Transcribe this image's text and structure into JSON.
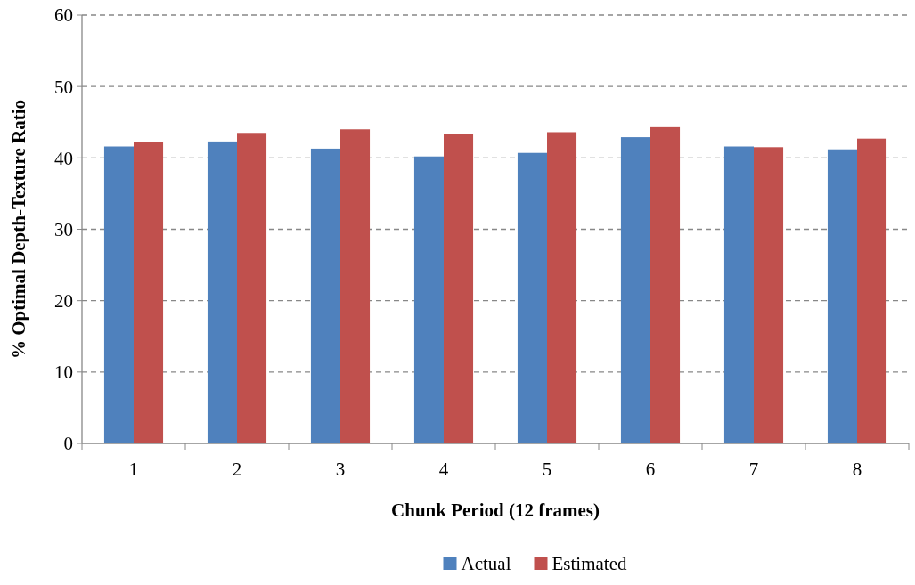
{
  "chart_data": {
    "type": "bar",
    "xlabel": "Chunk Period (12 frames)",
    "ylabel": "% Optimal Depth-Texture Ratio",
    "categories": [
      "1",
      "2",
      "3",
      "4",
      "5",
      "6",
      "7",
      "8"
    ],
    "series": [
      {
        "name": "Actual",
        "color": "#4f81bd",
        "values": [
          41.6,
          42.3,
          41.3,
          40.2,
          40.7,
          42.9,
          41.6,
          41.2
        ]
      },
      {
        "name": "Estimated",
        "color": "#c0504d",
        "values": [
          42.2,
          43.5,
          44.0,
          43.3,
          43.6,
          44.3,
          41.5,
          42.7
        ]
      }
    ],
    "ylim": [
      0,
      60
    ],
    "yticks": [
      0,
      10,
      20,
      30,
      40,
      50,
      60
    ],
    "grid": "y",
    "legend": "bottom"
  }
}
